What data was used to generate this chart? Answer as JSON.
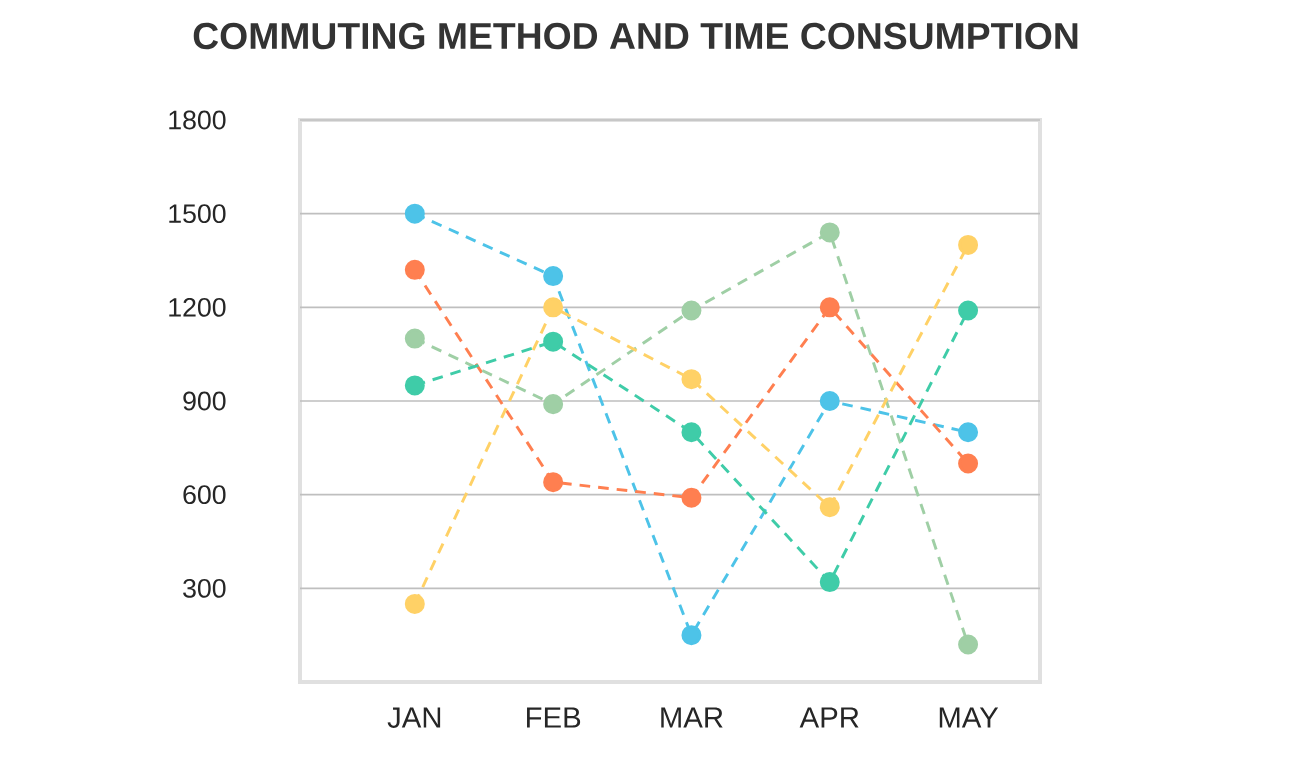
{
  "chart_data": {
    "type": "line",
    "title": "COMMUTING METHOD AND TIME CONSUMPTION",
    "categories": [
      "JAN",
      "FEB",
      "MAR",
      "APR",
      "MAY"
    ],
    "series": [
      {
        "color": "#4dc3e8",
        "values": [
          1500,
          1300,
          150,
          900,
          800
        ]
      },
      {
        "color": "#ff7f50",
        "values": [
          1320,
          640,
          590,
          1200,
          700
        ]
      },
      {
        "color": "#9fcfa5",
        "values": [
          1100,
          890,
          1190,
          1440,
          120
        ]
      },
      {
        "color": "#3fcca8",
        "values": [
          950,
          1090,
          800,
          320,
          1190
        ]
      },
      {
        "color": "#ffd166",
        "values": [
          250,
          1200,
          970,
          560,
          1400
        ]
      }
    ],
    "ylim": [
      0,
      1800
    ],
    "yticks": [
      300,
      600,
      900,
      1200,
      1500,
      1800
    ],
    "grid": "y",
    "legend": false,
    "marker": "circle",
    "line_style": "dashed"
  }
}
